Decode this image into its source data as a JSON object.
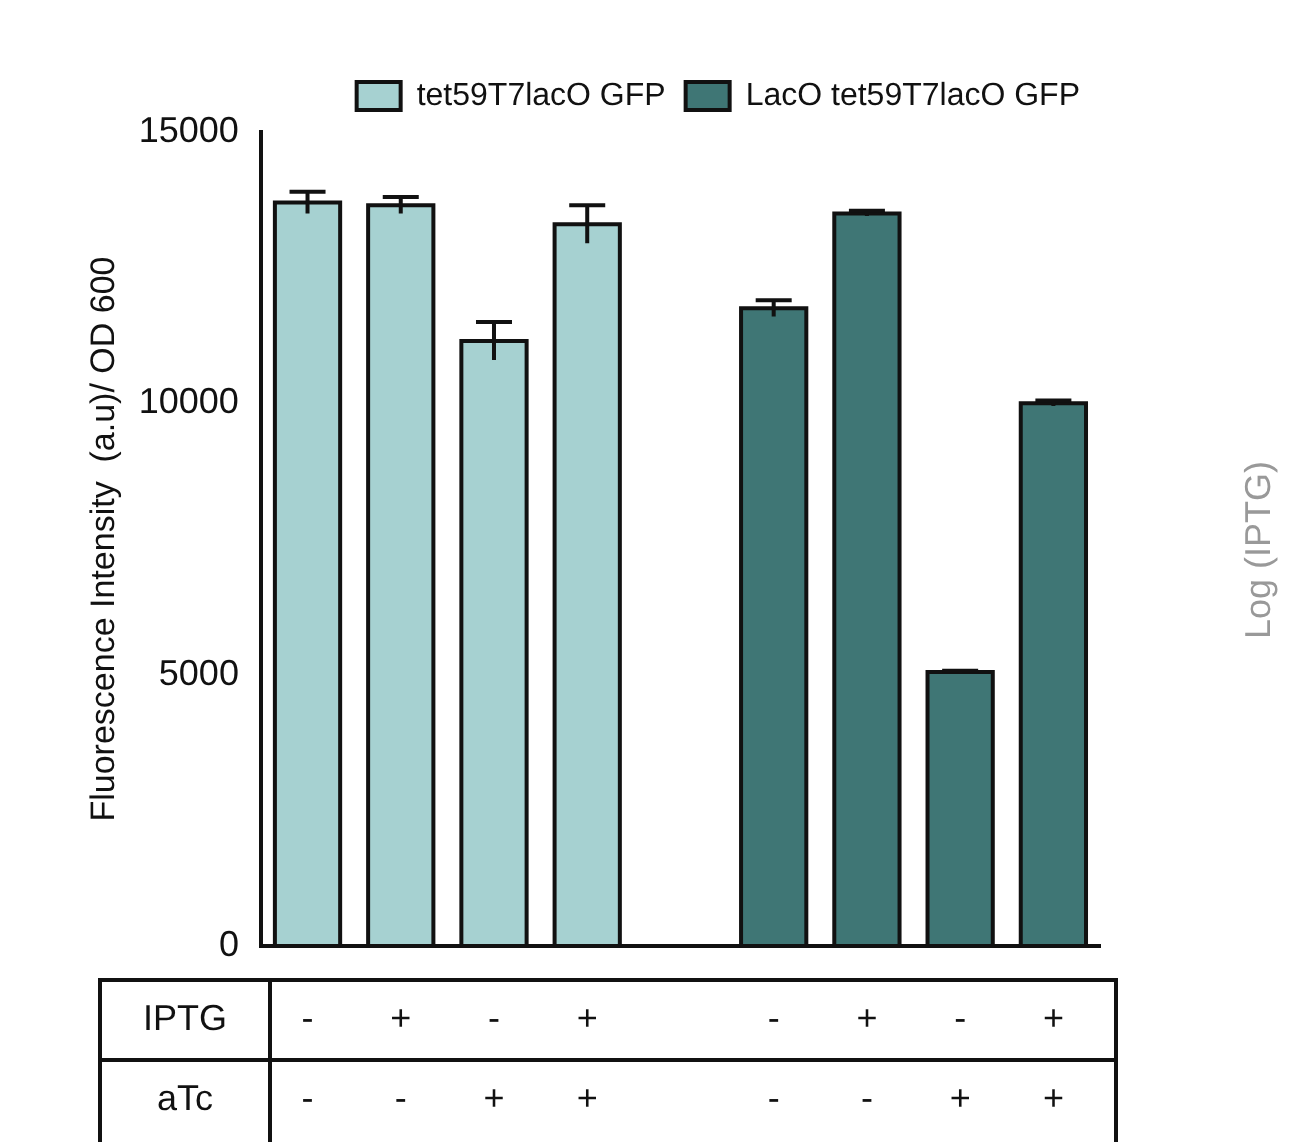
{
  "chart_data": {
    "type": "bar",
    "ylabel": "Fluorescence Intensity  (a.u)/ OD 600",
    "categories": [
      "-\n-",
      "+\n-",
      "-\n+",
      "+\n+",
      null,
      "-\n-",
      "+\n-",
      "-\n+",
      "+\n+"
    ],
    "series": [
      {
        "name": "tet59T7lacO GFP",
        "color": "#a6d1d1",
        "values": [
          13700,
          13650,
          11150,
          13300,
          null,
          null,
          null,
          null,
          null
        ],
        "errors": [
          200,
          150,
          350,
          350,
          null,
          null,
          null,
          null,
          null
        ]
      },
      {
        "name": "LacO tet59T7lacO GFP",
        "color": "#3f7675",
        "values": [
          null,
          null,
          null,
          null,
          null,
          11750,
          13500,
          5050,
          10000
        ],
        "errors": [
          null,
          null,
          null,
          null,
          null,
          150,
          50,
          20,
          50
        ]
      }
    ],
    "ylim": [
      0,
      15000
    ],
    "yticks": [
      0,
      5000,
      10000,
      15000
    ],
    "grid": false,
    "legend": "top right",
    "annotations": [
      "IPTG",
      "aTc",
      "Log (IPTG)"
    ]
  }
}
